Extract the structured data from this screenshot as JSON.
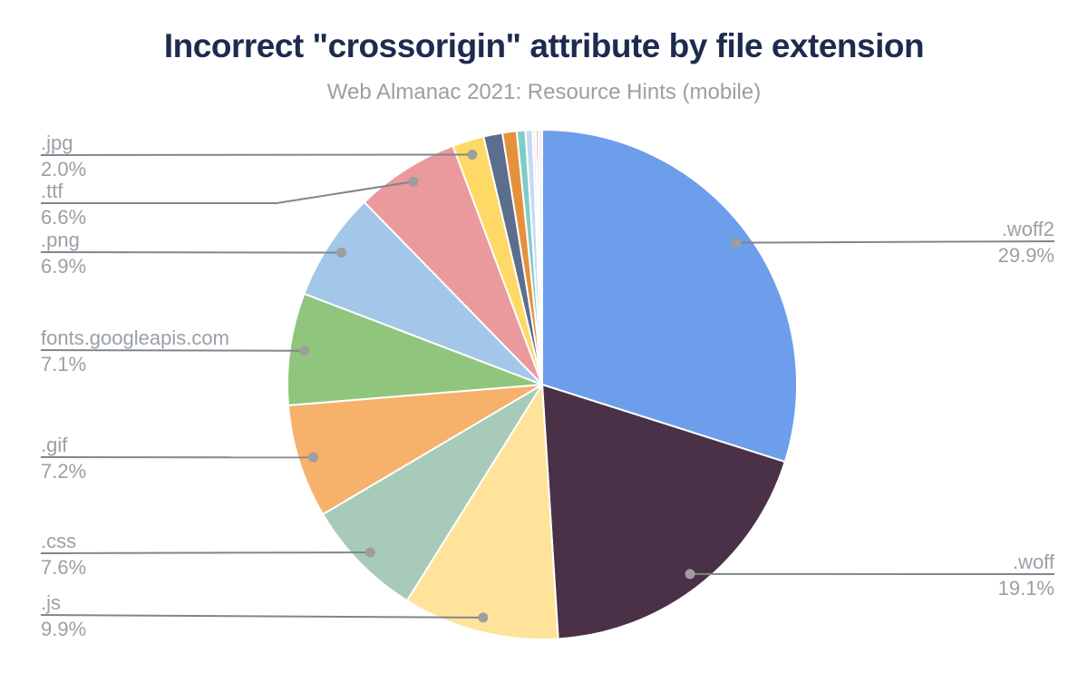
{
  "header": {
    "title": "Incorrect \"crossorigin\" attribute by file extension",
    "subtitle": "Web Almanac 2021: Resource Hints (mobile)"
  },
  "styles": {
    "background": "#ffffff",
    "title_color": "#1e2b4f",
    "subtitle_color": "#9e9e9e",
    "label_color": "#9aa0a6",
    "leader_line_color": "#80868b",
    "leader_dot_color": "#9e9e9e",
    "slice_border_color": "#ffffff"
  },
  "chart_data": {
    "type": "pie",
    "title": "Incorrect \"crossorigin\" attribute by file extension",
    "subtitle": "Web Almanac 2021: Resource Hints (mobile)",
    "start_angle_deg": 0,
    "direction": "clockwise",
    "value_unit": "percent",
    "label_format": "name above line, percent below line",
    "legend": "none (callout labels with leader lines)",
    "slices": [
      {
        "label": ".woff2",
        "value": 29.9,
        "color": "#6d9eeb",
        "labeled": true
      },
      {
        "label": ".woff",
        "value": 19.1,
        "color": "#4b3148",
        "labeled": true
      },
      {
        "label": ".js",
        "value": 9.9,
        "color": "#ffe39a",
        "labeled": true
      },
      {
        "label": ".css",
        "value": 7.6,
        "color": "#a7cbb8",
        "labeled": true
      },
      {
        "label": ".gif",
        "value": 7.2,
        "color": "#f6b16b",
        "labeled": true
      },
      {
        "label": "fonts.googleapis.com",
        "value": 7.1,
        "color": "#90c57e",
        "labeled": true
      },
      {
        "label": ".png",
        "value": 6.9,
        "color": "#a2c7e8",
        "labeled": true
      },
      {
        "label": ".ttf",
        "value": 6.6,
        "color": "#ea999c",
        "labeled": true
      },
      {
        "label": ".jpg",
        "value": 2.0,
        "color": "#fed966",
        "labeled": true
      },
      {
        "label": "unlabeled-slice-1",
        "value": 1.2,
        "color": "#5b6e8e",
        "labeled": false
      },
      {
        "label": "unlabeled-slice-2",
        "value": 0.9,
        "color": "#e5913c",
        "labeled": false
      },
      {
        "label": "unlabeled-slice-3",
        "value": 0.55,
        "color": "#7ecdc7",
        "labeled": false
      },
      {
        "label": "unlabeled-slice-4",
        "value": 0.45,
        "color": "#c7d9f1",
        "labeled": false
      },
      {
        "label": "unlabeled-slice-5",
        "value": 0.2,
        "color": "#e9eff9",
        "labeled": false
      },
      {
        "label": "unlabeled-slice-6",
        "value": 0.15,
        "color": "#df6e63",
        "labeled": false
      },
      {
        "label": "unlabeled-slice-7",
        "value": 0.25,
        "color": "#f6efef",
        "labeled": false
      }
    ]
  }
}
